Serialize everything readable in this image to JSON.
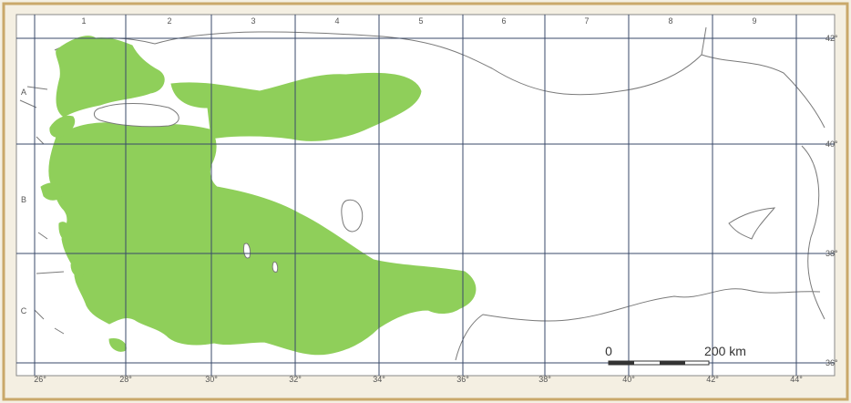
{
  "map": {
    "grid_columns": [
      "1",
      "2",
      "3",
      "4",
      "5",
      "6",
      "7",
      "8",
      "9"
    ],
    "grid_rows": [
      "A",
      "B",
      "C"
    ],
    "longitude_labels": [
      "26°",
      "28°",
      "30°",
      "32°",
      "34°",
      "36°",
      "38°",
      "40°",
      "42°",
      "44°"
    ],
    "latitude_labels": [
      "42°",
      "40°",
      "38°",
      "36°"
    ],
    "scale": {
      "start_label": "0",
      "end_label": "200 km"
    },
    "colors": {
      "background": "#f4efe2",
      "map_fill": "#ffffff",
      "distribution_fill": "#8fcf5a",
      "coastline": "#7a7a7a",
      "grid": "#3a4a6a",
      "frame": "#c9a86a"
    }
  }
}
